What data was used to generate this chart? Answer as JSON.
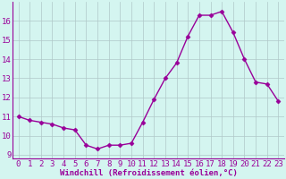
{
  "x": [
    0,
    1,
    2,
    3,
    4,
    5,
    6,
    7,
    8,
    9,
    10,
    11,
    12,
    13,
    14,
    15,
    16,
    17,
    18,
    19,
    20,
    21,
    22,
    23
  ],
  "y": [
    11.0,
    10.8,
    10.7,
    10.6,
    10.4,
    10.3,
    9.5,
    9.3,
    9.5,
    9.5,
    9.6,
    10.7,
    11.9,
    13.0,
    13.8,
    15.2,
    16.3,
    16.3,
    16.5,
    15.4,
    14.0,
    12.8,
    12.7,
    11.8
  ],
  "line_color": "#990099",
  "marker": "D",
  "marker_size": 2.5,
  "linewidth": 1.0,
  "bg_color": "#d4f5f0",
  "grid_color": "#b0c8c8",
  "xlabel": "Windchill (Refroidissement éolien,°C)",
  "xlabel_color": "#990099",
  "tick_color": "#990099",
  "spine_color": "#990099",
  "ylim": [
    8.8,
    17.0
  ],
  "yticks": [
    9,
    10,
    11,
    12,
    13,
    14,
    15,
    16
  ],
  "xticks": [
    0,
    1,
    2,
    3,
    4,
    5,
    6,
    7,
    8,
    9,
    10,
    11,
    12,
    13,
    14,
    15,
    16,
    17,
    18,
    19,
    20,
    21,
    22,
    23
  ],
  "label_fontsize": 6.5,
  "tick_fontsize": 6.5
}
